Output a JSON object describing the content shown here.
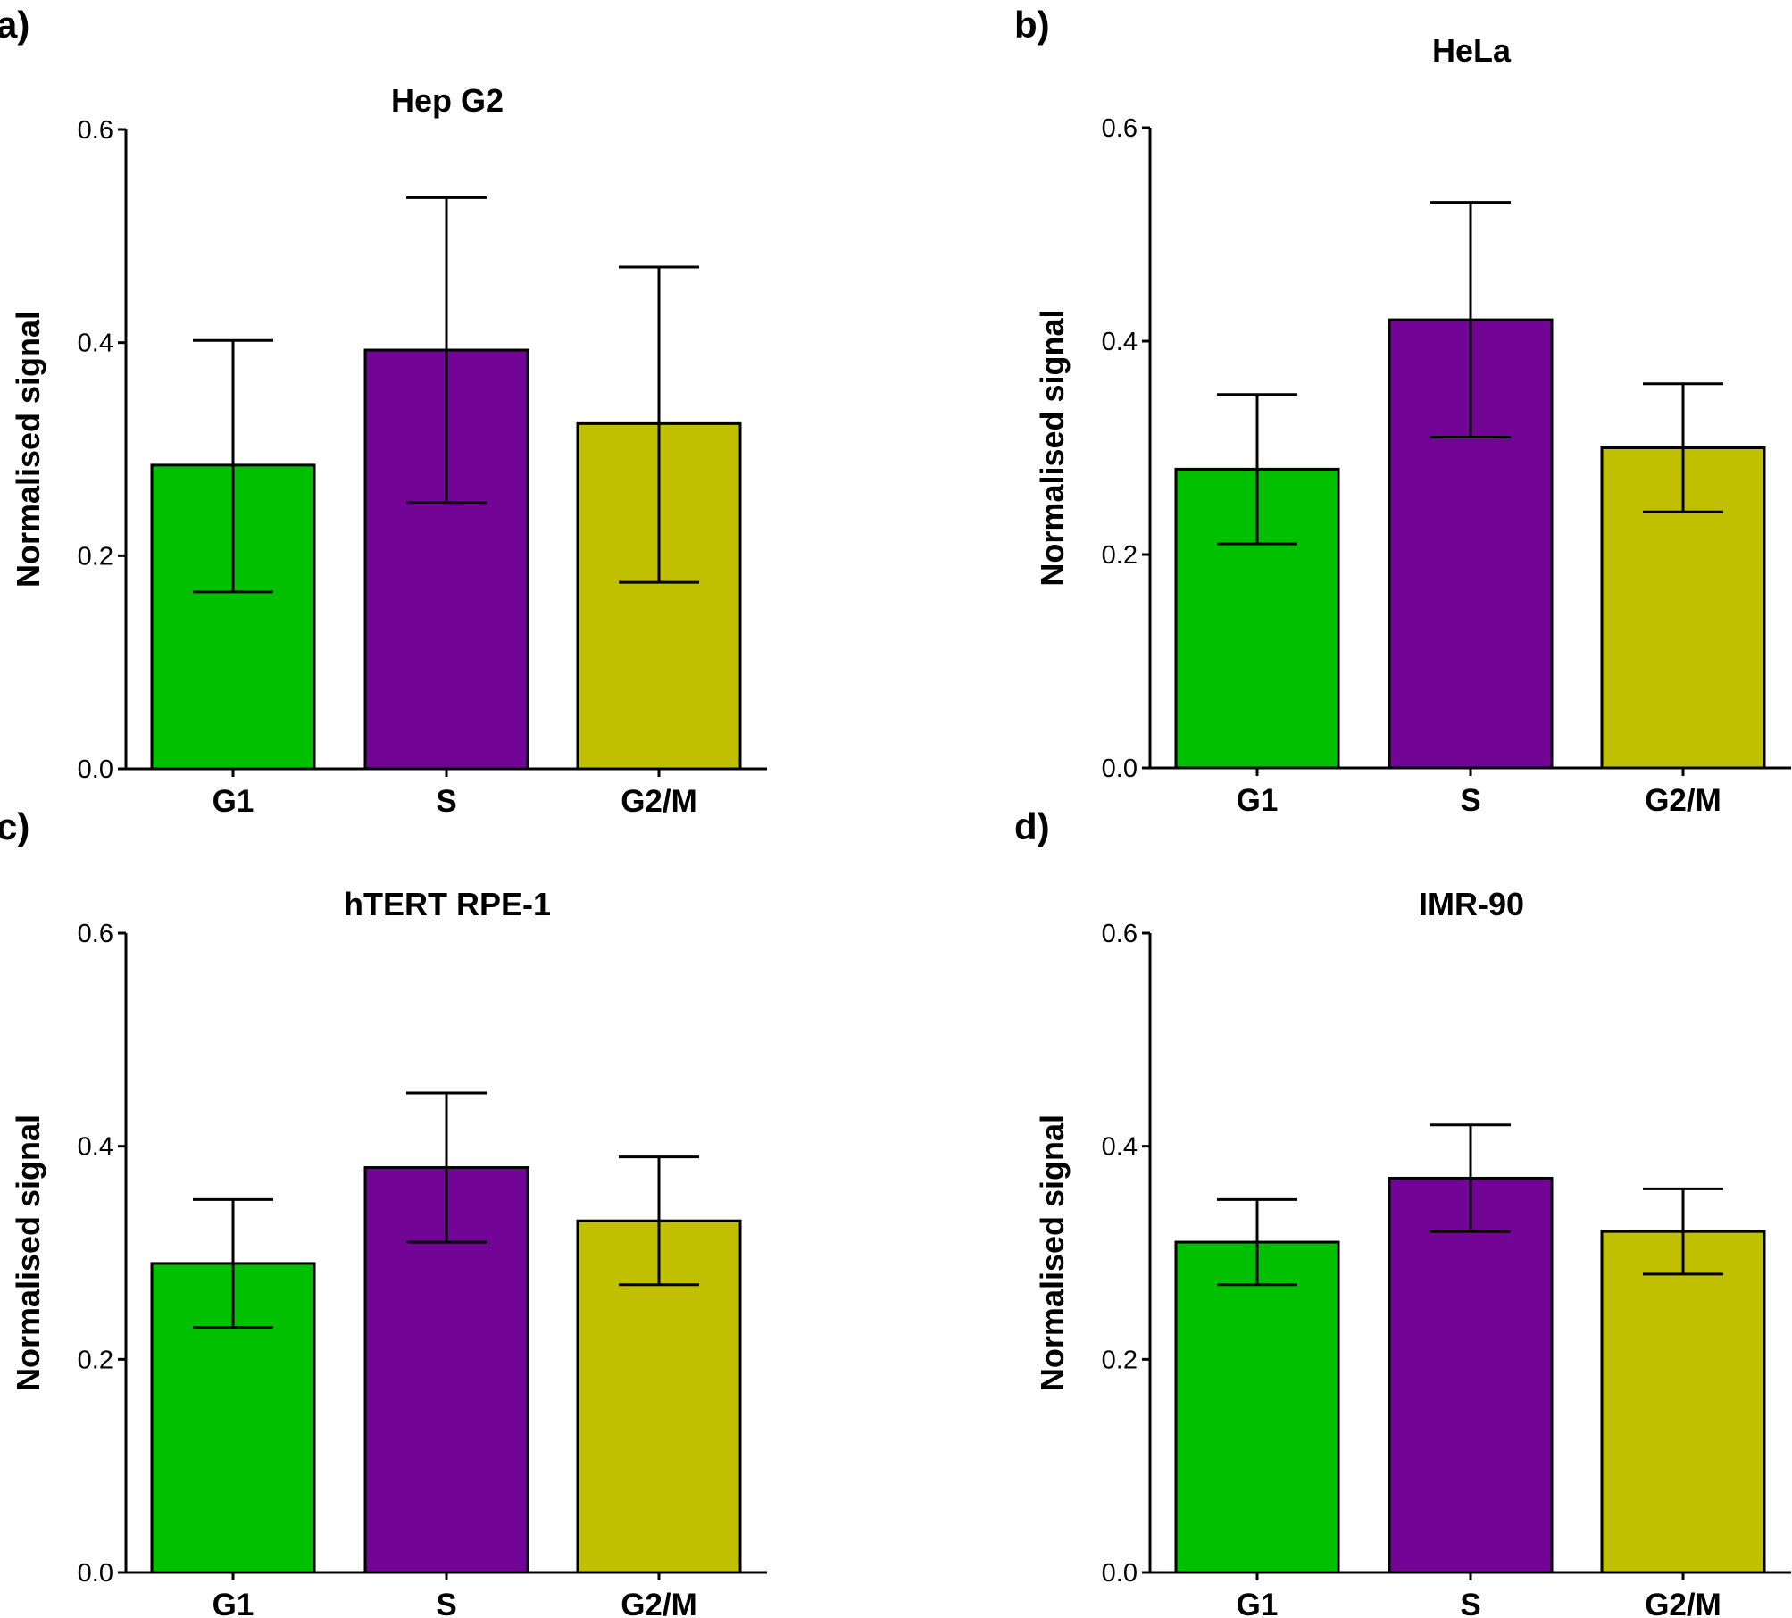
{
  "colors": {
    "G1": "#00c000",
    "S": "#730596",
    "G2/M": "#c0c000",
    "axis": "#000000",
    "background": "#ffffff"
  },
  "chart_data": [
    {
      "type": "bar",
      "panel": "a)",
      "title": "Hep G2",
      "xlabel": "",
      "ylabel": "Normalised signal",
      "ylim": [
        0,
        0.6
      ],
      "yticks": [
        "0.0",
        "0.2",
        "0.4",
        "0.6"
      ],
      "categories": [
        "G1",
        "S",
        "G2/M"
      ],
      "values": [
        0.285,
        0.393,
        0.324
      ],
      "error_low": [
        0.166,
        0.25,
        0.175
      ],
      "error_high": [
        0.402,
        0.536,
        0.471
      ],
      "grid": false,
      "legend": "none"
    },
    {
      "type": "bar",
      "panel": "b)",
      "title": "HeLa",
      "xlabel": "",
      "ylabel": "Normalised signal",
      "ylim": [
        0,
        0.6
      ],
      "yticks": [
        "0.0",
        "0.2",
        "0.4",
        "0.6"
      ],
      "categories": [
        "G1",
        "S",
        "G2/M"
      ],
      "values": [
        0.28,
        0.42,
        0.3
      ],
      "error_low": [
        0.21,
        0.31,
        0.24
      ],
      "error_high": [
        0.35,
        0.53,
        0.36
      ],
      "grid": false,
      "legend": "none"
    },
    {
      "type": "bar",
      "panel": "c)",
      "title": "hTERT RPE-1",
      "xlabel": "",
      "ylabel": "Normalised signal",
      "ylim": [
        0,
        0.6
      ],
      "yticks": [
        "0.0",
        "0.2",
        "0.4",
        "0.6"
      ],
      "categories": [
        "G1",
        "S",
        "G2/M"
      ],
      "values": [
        0.29,
        0.38,
        0.33
      ],
      "error_low": [
        0.23,
        0.31,
        0.27
      ],
      "error_high": [
        0.35,
        0.45,
        0.39
      ],
      "grid": false,
      "legend": "none"
    },
    {
      "type": "bar",
      "panel": "d)",
      "title": "IMR-90",
      "xlabel": "",
      "ylabel": "Normalised signal",
      "ylim": [
        0,
        0.6
      ],
      "yticks": [
        "0.0",
        "0.2",
        "0.4",
        "0.6"
      ],
      "categories": [
        "G1",
        "S",
        "G2/M"
      ],
      "values": [
        0.31,
        0.37,
        0.32
      ],
      "error_low": [
        0.27,
        0.32,
        0.28
      ],
      "error_high": [
        0.35,
        0.42,
        0.36
      ],
      "grid": false,
      "legend": "none"
    }
  ]
}
